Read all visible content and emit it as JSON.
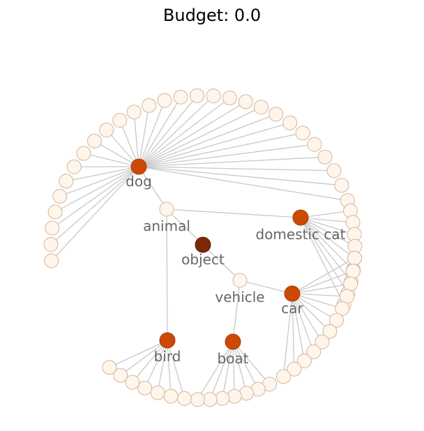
{
  "title": "Budget: 0.0",
  "colors": {
    "edge": "#c8c8c8",
    "leaf_fill": "#fff5eb",
    "hub_fill": "#cc4a05",
    "root_fill": "#7f2704",
    "label": "#666666"
  },
  "nodes": [
    {
      "id": "object",
      "label": "object",
      "kind": "root"
    },
    {
      "id": "animal",
      "label": "animal",
      "kind": "mid"
    },
    {
      "id": "vehicle",
      "label": "vehicle",
      "kind": "mid"
    },
    {
      "id": "dog",
      "label": "dog",
      "kind": "hub"
    },
    {
      "id": "domestic_cat",
      "label": "domestic cat",
      "kind": "hub"
    },
    {
      "id": "bird",
      "label": "bird",
      "kind": "hub"
    },
    {
      "id": "car",
      "label": "car",
      "kind": "hub"
    },
    {
      "id": "boat",
      "label": "boat",
      "kind": "hub"
    }
  ],
  "edges": [
    [
      "object",
      "animal"
    ],
    [
      "object",
      "vehicle"
    ],
    [
      "animal",
      "dog"
    ],
    [
      "animal",
      "domestic_cat"
    ],
    [
      "animal",
      "bird"
    ],
    [
      "vehicle",
      "car"
    ],
    [
      "vehicle",
      "boat"
    ]
  ],
  "leaf_counts": {
    "dog": 28,
    "domestic_cat": 9,
    "car": 12,
    "boat": 7,
    "bird": 7
  }
}
